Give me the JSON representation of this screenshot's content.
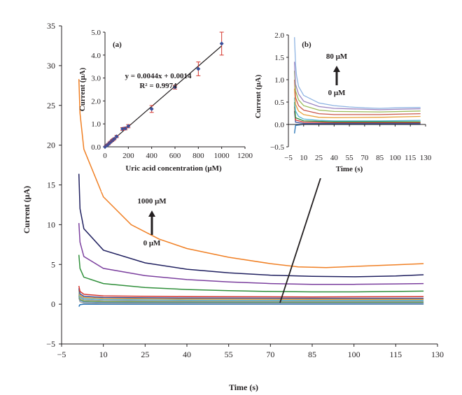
{
  "chart_data": [
    {
      "id": "main",
      "type": "line",
      "title": "",
      "xlabel": "Time (s)",
      "ylabel": "Current (μA)",
      "xlim": [
        -5,
        130
      ],
      "ylim": [
        -5,
        35
      ],
      "xticks": [
        -5,
        10,
        25,
        40,
        55,
        70,
        85,
        100,
        115,
        130
      ],
      "yticks": [
        -5,
        0,
        5,
        10,
        15,
        20,
        25,
        30,
        35
      ],
      "grid": false,
      "annotation": {
        "top": "1000 μM",
        "bottom": "0 μM",
        "arrow": "up"
      },
      "series": [
        {
          "color": "#1f6fb4",
          "points": [
            [
              1.2,
              -0.3
            ],
            [
              1.6,
              -0.05
            ],
            [
              3,
              0.0
            ],
            [
              10,
              0.0
            ],
            [
              40,
              0.0
            ],
            [
              85,
              0.0
            ],
            [
              125,
              0.0
            ]
          ]
        },
        {
          "color": "#a3a3a3",
          "points": [
            [
              1.2,
              0.8
            ],
            [
              1.6,
              0.3
            ],
            [
              3,
              0.15
            ],
            [
              10,
              0.1
            ],
            [
              40,
              0.08
            ],
            [
              85,
              0.06
            ],
            [
              125,
              0.05
            ]
          ]
        },
        {
          "color": "#4f8bc9",
          "points": [
            [
              1.2,
              1.0
            ],
            [
              1.6,
              0.5
            ],
            [
              3,
              0.3
            ],
            [
              10,
              0.22
            ],
            [
              40,
              0.18
            ],
            [
              85,
              0.15
            ],
            [
              125,
              0.14
            ]
          ]
        },
        {
          "color": "#7ea64b",
          "points": [
            [
              1.2,
              1.2
            ],
            [
              1.6,
              0.6
            ],
            [
              3,
              0.4
            ],
            [
              10,
              0.32
            ],
            [
              40,
              0.28
            ],
            [
              85,
              0.25
            ],
            [
              125,
              0.25
            ]
          ]
        },
        {
          "color": "#9a9a9a",
          "points": [
            [
              1.2,
              1.4
            ],
            [
              1.6,
              0.8
            ],
            [
              3,
              0.55
            ],
            [
              10,
              0.45
            ],
            [
              40,
              0.38
            ],
            [
              85,
              0.35
            ],
            [
              125,
              0.35
            ]
          ]
        },
        {
          "color": "#57b9d8",
          "points": [
            [
              1.2,
              1.6
            ],
            [
              1.6,
              0.95
            ],
            [
              3,
              0.7
            ],
            [
              10,
              0.58
            ],
            [
              40,
              0.5
            ],
            [
              85,
              0.48
            ],
            [
              125,
              0.48
            ]
          ]
        },
        {
          "color": "#e8a13c",
          "points": [
            [
              1.2,
              1.8
            ],
            [
              1.6,
              1.1
            ],
            [
              3,
              0.85
            ],
            [
              10,
              0.72
            ],
            [
              40,
              0.64
            ],
            [
              85,
              0.6
            ],
            [
              125,
              0.6
            ]
          ]
        },
        {
          "color": "#3a4f9a",
          "points": [
            [
              1.2,
              2.0
            ],
            [
              1.6,
              1.3
            ],
            [
              3,
              1.0
            ],
            [
              10,
              0.85
            ],
            [
              40,
              0.78
            ],
            [
              85,
              0.75
            ],
            [
              125,
              0.75
            ]
          ]
        },
        {
          "color": "#d6352c",
          "points": [
            [
              1.2,
              2.3
            ],
            [
              1.6,
              1.6
            ],
            [
              3,
              1.25
            ],
            [
              10,
              1.05
            ],
            [
              40,
              0.95
            ],
            [
              85,
              0.92
            ],
            [
              125,
              0.95
            ]
          ]
        },
        {
          "color": "#2f8f3a",
          "points": [
            [
              1.2,
              6.2
            ],
            [
              1.6,
              4.5
            ],
            [
              3,
              3.4
            ],
            [
              10,
              2.6
            ],
            [
              25,
              2.1
            ],
            [
              40,
              1.85
            ],
            [
              55,
              1.7
            ],
            [
              70,
              1.6
            ],
            [
              85,
              1.55
            ],
            [
              100,
              1.55
            ],
            [
              115,
              1.6
            ],
            [
              125,
              1.65
            ]
          ]
        },
        {
          "color": "#7b3f9e",
          "points": [
            [
              1.2,
              10.2
            ],
            [
              1.6,
              7.8
            ],
            [
              3,
              6.0
            ],
            [
              10,
              4.5
            ],
            [
              25,
              3.6
            ],
            [
              40,
              3.1
            ],
            [
              55,
              2.8
            ],
            [
              70,
              2.6
            ],
            [
              85,
              2.5
            ],
            [
              100,
              2.5
            ],
            [
              115,
              2.55
            ],
            [
              125,
              2.6
            ]
          ]
        },
        {
          "color": "#1f1f5f",
          "points": [
            [
              1.2,
              16.4
            ],
            [
              1.6,
              12.0
            ],
            [
              3,
              9.5
            ],
            [
              10,
              6.8
            ],
            [
              25,
              5.2
            ],
            [
              40,
              4.4
            ],
            [
              55,
              3.95
            ],
            [
              70,
              3.65
            ],
            [
              85,
              3.5
            ],
            [
              100,
              3.45
            ],
            [
              115,
              3.55
            ],
            [
              125,
              3.7
            ]
          ]
        },
        {
          "color": "#f07f23",
          "points": [
            [
              1.2,
              28.3
            ],
            [
              1.6,
              24.0
            ],
            [
              3,
              19.5
            ],
            [
              10,
              13.5
            ],
            [
              20,
              10.0
            ],
            [
              30,
              8.2
            ],
            [
              40,
              7.0
            ],
            [
              55,
              5.9
            ],
            [
              70,
              5.1
            ],
            [
              80,
              4.7
            ],
            [
              90,
              4.6
            ],
            [
              100,
              4.75
            ],
            [
              115,
              4.95
            ],
            [
              125,
              5.1
            ]
          ]
        }
      ]
    },
    {
      "id": "inset_a",
      "type": "scatter",
      "panel_label": "(a)",
      "xlabel": "Uric acid concentration (μM)",
      "ylabel": "Current (μA)",
      "xlim": [
        0,
        1200
      ],
      "ylim": [
        0.0,
        5.0
      ],
      "xticks": [
        0,
        200,
        400,
        600,
        800,
        1000,
        1200
      ],
      "yticks": [
        "0.0",
        "1.0",
        "2.0",
        "3.0",
        "4.0",
        "5.0"
      ],
      "grid": false,
      "fit_equation": "y = 0.0044x + 0.0014",
      "r_squared": "R² = 0.9974",
      "fit": {
        "slope": 0.0044,
        "intercept": 0.0014,
        "x_range": [
          0,
          1000
        ]
      },
      "marker_color": "#3a4f9a",
      "error_color": "#d6352c",
      "points": [
        {
          "x": 0,
          "y": 0.0,
          "err": 0.0
        },
        {
          "x": 10,
          "y": 0.05,
          "err": 0.02
        },
        {
          "x": 20,
          "y": 0.08,
          "err": 0.02
        },
        {
          "x": 30,
          "y": 0.12,
          "err": 0.03
        },
        {
          "x": 40,
          "y": 0.18,
          "err": 0.03
        },
        {
          "x": 50,
          "y": 0.22,
          "err": 0.03
        },
        {
          "x": 60,
          "y": 0.27,
          "err": 0.04
        },
        {
          "x": 70,
          "y": 0.31,
          "err": 0.04
        },
        {
          "x": 80,
          "y": 0.35,
          "err": 0.04
        },
        {
          "x": 100,
          "y": 0.45,
          "err": 0.05
        },
        {
          "x": 150,
          "y": 0.78,
          "err": 0.06
        },
        {
          "x": 175,
          "y": 0.8,
          "err": 0.06
        },
        {
          "x": 200,
          "y": 0.9,
          "err": 0.07
        },
        {
          "x": 400,
          "y": 1.65,
          "err": 0.15
        },
        {
          "x": 600,
          "y": 2.6,
          "err": 0.08
        },
        {
          "x": 800,
          "y": 3.4,
          "err": 0.3
        },
        {
          "x": 1000,
          "y": 4.5,
          "err": 0.5
        }
      ]
    },
    {
      "id": "inset_b",
      "type": "line",
      "panel_label": "(b)",
      "xlabel": "Time (s)",
      "ylabel": "Current (μA)",
      "xlim": [
        -5,
        130
      ],
      "ylim": [
        -0.5,
        2.0
      ],
      "xticks": [
        -5,
        10,
        25,
        40,
        55,
        70,
        85,
        100,
        115,
        130
      ],
      "xtick_labels": [
        "−5",
        "10",
        "25",
        "40",
        "55",
        "70",
        "85",
        "100",
        "115",
        "130"
      ],
      "yticks": [
        -0.5,
        0.0,
        0.5,
        1.0,
        1.5,
        2.0
      ],
      "ytick_labels": [
        "−0.5",
        "0.0",
        "0.5",
        "1.0",
        "1.5",
        "2.0"
      ],
      "grid": false,
      "annotation": {
        "top": "80 μM",
        "bottom": "0 μM",
        "arrow": "up"
      },
      "series": [
        {
          "color": "#1f6fb4",
          "points": [
            [
              1,
              -0.2
            ],
            [
              2,
              -0.02
            ],
            [
              10,
              0.0
            ],
            [
              40,
              0.0
            ],
            [
              85,
              0.0
            ],
            [
              125,
              0.0
            ]
          ]
        },
        {
          "color": "#3a4f9a",
          "points": [
            [
              1,
              0.3
            ],
            [
              2,
              0.05
            ],
            [
              10,
              0.02
            ],
            [
              40,
              0.02
            ],
            [
              85,
              0.02
            ],
            [
              125,
              0.02
            ]
          ]
        },
        {
          "color": "#d6352c",
          "points": [
            [
              1,
              0.4
            ],
            [
              2,
              0.1
            ],
            [
              10,
              0.05
            ],
            [
              40,
              0.04
            ],
            [
              85,
              0.04
            ],
            [
              125,
              0.04
            ]
          ]
        },
        {
          "color": "#2f8f3a",
          "points": [
            [
              1,
              0.5
            ],
            [
              2,
              0.15
            ],
            [
              10,
              0.08
            ],
            [
              40,
              0.06
            ],
            [
              85,
              0.06
            ],
            [
              125,
              0.06
            ]
          ]
        },
        {
          "color": "#57b9d8",
          "points": [
            [
              1,
              0.6
            ],
            [
              2,
              0.3
            ],
            [
              5,
              0.18
            ],
            [
              10,
              0.12
            ],
            [
              25,
              0.09
            ],
            [
              40,
              0.08
            ],
            [
              85,
              0.08
            ],
            [
              125,
              0.09
            ]
          ]
        },
        {
          "color": "#e8a13c",
          "points": [
            [
              1,
              0.8
            ],
            [
              2,
              0.45
            ],
            [
              5,
              0.3
            ],
            [
              10,
              0.22
            ],
            [
              25,
              0.16
            ],
            [
              40,
              0.15
            ],
            [
              85,
              0.16
            ],
            [
              125,
              0.18
            ]
          ]
        },
        {
          "color": "#c9574d",
          "points": [
            [
              1,
              1.0
            ],
            [
              2,
              0.6
            ],
            [
              5,
              0.42
            ],
            [
              10,
              0.32
            ],
            [
              25,
              0.24
            ],
            [
              40,
              0.22
            ],
            [
              85,
              0.22
            ],
            [
              125,
              0.24
            ]
          ]
        },
        {
          "color": "#9bbb59",
          "points": [
            [
              1,
              1.2
            ],
            [
              2,
              0.75
            ],
            [
              5,
              0.55
            ],
            [
              10,
              0.42
            ],
            [
              25,
              0.32
            ],
            [
              40,
              0.29
            ],
            [
              85,
              0.28
            ],
            [
              125,
              0.3
            ]
          ]
        },
        {
          "color": "#9a83c0",
          "points": [
            [
              1,
              1.4
            ],
            [
              2,
              0.9
            ],
            [
              5,
              0.68
            ],
            [
              10,
              0.52
            ],
            [
              25,
              0.4
            ],
            [
              40,
              0.36
            ],
            [
              85,
              0.33
            ],
            [
              125,
              0.35
            ]
          ]
        },
        {
          "color": "#8db3e2",
          "points": [
            [
              1,
              1.95
            ],
            [
              2,
              1.35
            ],
            [
              3,
              1.1
            ],
            [
              5,
              0.85
            ],
            [
              10,
              0.65
            ],
            [
              25,
              0.48
            ],
            [
              40,
              0.42
            ],
            [
              55,
              0.39
            ],
            [
              70,
              0.37
            ],
            [
              85,
              0.36
            ],
            [
              100,
              0.37
            ],
            [
              125,
              0.38
            ]
          ]
        }
      ]
    }
  ]
}
